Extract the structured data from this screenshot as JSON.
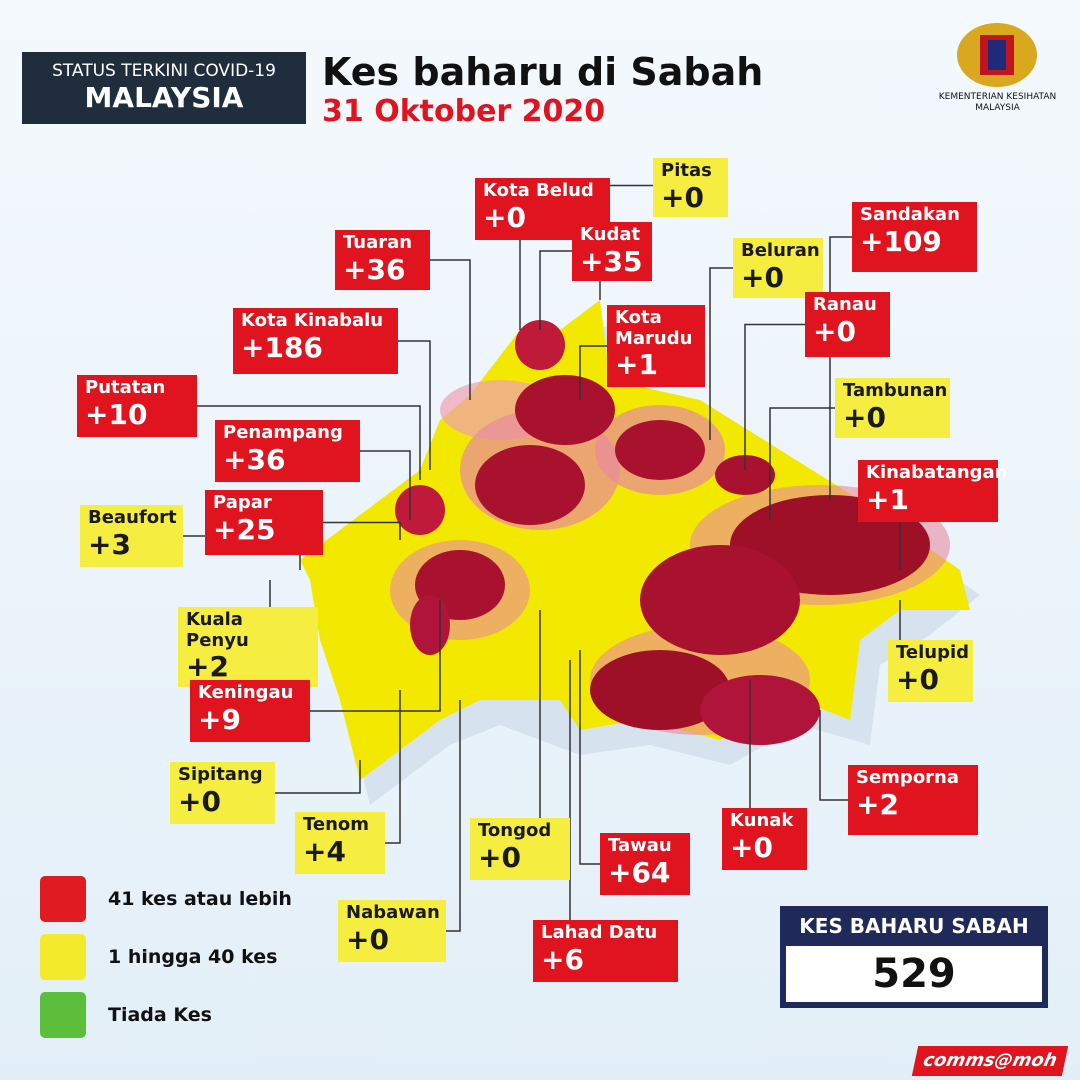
{
  "header": {
    "badge_top": "STATUS TERKINI COVID-19",
    "badge_bottom": "MALAYSIA",
    "title": "Kes baharu di Sabah",
    "date": "31 Oktober 2020",
    "ministry": [
      "KEMENTERIAN KESIHATAN",
      "MALAYSIA"
    ]
  },
  "districts": [
    {
      "name": "Kota Belud",
      "cases": "+0",
      "level": "red"
    },
    {
      "name": "Pitas",
      "cases": "+0",
      "level": "yellow"
    },
    {
      "name": "Kudat",
      "cases": "+35",
      "level": "red"
    },
    {
      "name": "Sandakan",
      "cases": "+109",
      "level": "red"
    },
    {
      "name": "Tuaran",
      "cases": "+36",
      "level": "red"
    },
    {
      "name": "Beluran",
      "cases": "+0",
      "level": "yellow"
    },
    {
      "name": "Kota Kinabalu",
      "cases": "+186",
      "level": "red"
    },
    {
      "name": "Ranau",
      "cases": "+0",
      "level": "red"
    },
    {
      "name": "Kota Marudu",
      "cases": "+1",
      "level": "red"
    },
    {
      "name": "Putatan",
      "cases": "+10",
      "level": "red"
    },
    {
      "name": "Tambunan",
      "cases": "+0",
      "level": "yellow"
    },
    {
      "name": "Penampang",
      "cases": "+36",
      "level": "red"
    },
    {
      "name": "Kinabatangan",
      "cases": "+1",
      "level": "red"
    },
    {
      "name": "Papar",
      "cases": "+25",
      "level": "red"
    },
    {
      "name": "Beaufort",
      "cases": "+3",
      "level": "yellow"
    },
    {
      "name": "Kuala Penyu",
      "cases": "+2",
      "level": "yellow"
    },
    {
      "name": "Telupid",
      "cases": "+0",
      "level": "yellow"
    },
    {
      "name": "Keningau",
      "cases": "+9",
      "level": "red"
    },
    {
      "name": "Sipitang",
      "cases": "+0",
      "level": "yellow"
    },
    {
      "name": "Semporna",
      "cases": "+2",
      "level": "red"
    },
    {
      "name": "Tenom",
      "cases": "+4",
      "level": "yellow"
    },
    {
      "name": "Tongod",
      "cases": "+0",
      "level": "yellow"
    },
    {
      "name": "Kunak",
      "cases": "+0",
      "level": "red"
    },
    {
      "name": "Tawau",
      "cases": "+64",
      "level": "red"
    },
    {
      "name": "Nabawan",
      "cases": "+0",
      "level": "yellow"
    },
    {
      "name": "Lahad Datu",
      "cases": "+6",
      "level": "red"
    }
  ],
  "legend": [
    {
      "label": "41 kes atau lebih",
      "color": "#e01b22"
    },
    {
      "label": "1 hingga 40 kes",
      "color": "#f3ea2c"
    },
    {
      "label": "Tiada Kes",
      "color": "#5cbf3c"
    }
  ],
  "total": {
    "label": "KES BAHARU SABAH",
    "value": 529
  },
  "footer": "comms@moh"
}
